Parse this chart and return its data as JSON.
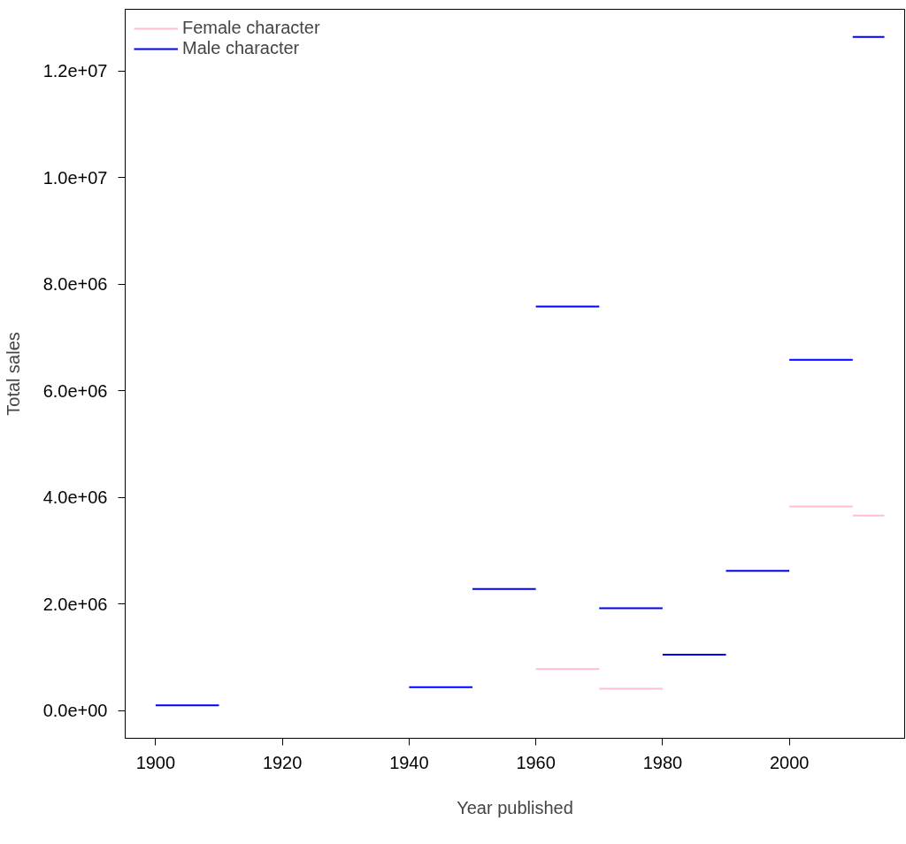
{
  "chart_data": {
    "type": "line",
    "xlabel": "Year published",
    "ylabel": "Total sales",
    "xlim": [
      1895.2,
      2018.2
    ],
    "ylim": [
      -520000,
      13160000
    ],
    "xticks": [
      1900,
      1920,
      1940,
      1960,
      1980,
      2000
    ],
    "yticks": [
      {
        "value": 0,
        "label": "0.0e+00"
      },
      {
        "value": 2000000,
        "label": "2.0e+06"
      },
      {
        "value": 4000000,
        "label": "4.0e+06"
      },
      {
        "value": 6000000,
        "label": "6.0e+06"
      },
      {
        "value": 8000000,
        "label": "8.0e+06"
      },
      {
        "value": 10000000,
        "label": "1.0e+07"
      },
      {
        "value": 12000000,
        "label": "1.2e+07"
      }
    ],
    "grid": false,
    "legend": "top left",
    "marker": "none",
    "line_style": "solid",
    "series": [
      {
        "name": "Female character",
        "color": "#ffc0cb",
        "x": [
          1960,
          1970
        ],
        "values": [
          780000,
          780000
        ]
      },
      {
        "color": "#ffc0cb",
        "x": [
          1970,
          1980
        ],
        "values": [
          410000,
          410000
        ]
      },
      {
        "color": "#ffc0cb",
        "x": [
          2000,
          2010
        ],
        "values": [
          3830000,
          3830000
        ]
      },
      {
        "color": "#ffc0cb",
        "x": [
          2010,
          2015
        ],
        "values": [
          3660000,
          3660000
        ]
      },
      {
        "name": "Male character",
        "color": "#0000ff",
        "x": [
          1900,
          1910
        ],
        "values": [
          100000,
          100000
        ]
      },
      {
        "color": "#0000ff",
        "x": [
          1940,
          1950
        ],
        "values": [
          440000,
          440000
        ]
      },
      {
        "color": "#0000ff",
        "x": [
          1950,
          1960
        ],
        "values": [
          2280000,
          2280000
        ]
      },
      {
        "color": "#0000ff",
        "x": [
          1960,
          1970
        ],
        "values": [
          7580000,
          7580000
        ]
      },
      {
        "color": "#0000ff",
        "x": [
          1970,
          1980
        ],
        "values": [
          1920000,
          1920000
        ]
      },
      {
        "color": "#0000ff",
        "x": [
          1980,
          1990
        ],
        "values": [
          1050000,
          1050000
        ]
      },
      {
        "color": "#0000ff",
        "x": [
          1990,
          2000
        ],
        "values": [
          2620000,
          2620000
        ]
      },
      {
        "color": "#0000ff",
        "x": [
          2000,
          2010
        ],
        "values": [
          6580000,
          6580000
        ]
      },
      {
        "color": "#0000ff",
        "x": [
          2010,
          2015
        ],
        "values": [
          12640000,
          12640000
        ]
      }
    ]
  }
}
